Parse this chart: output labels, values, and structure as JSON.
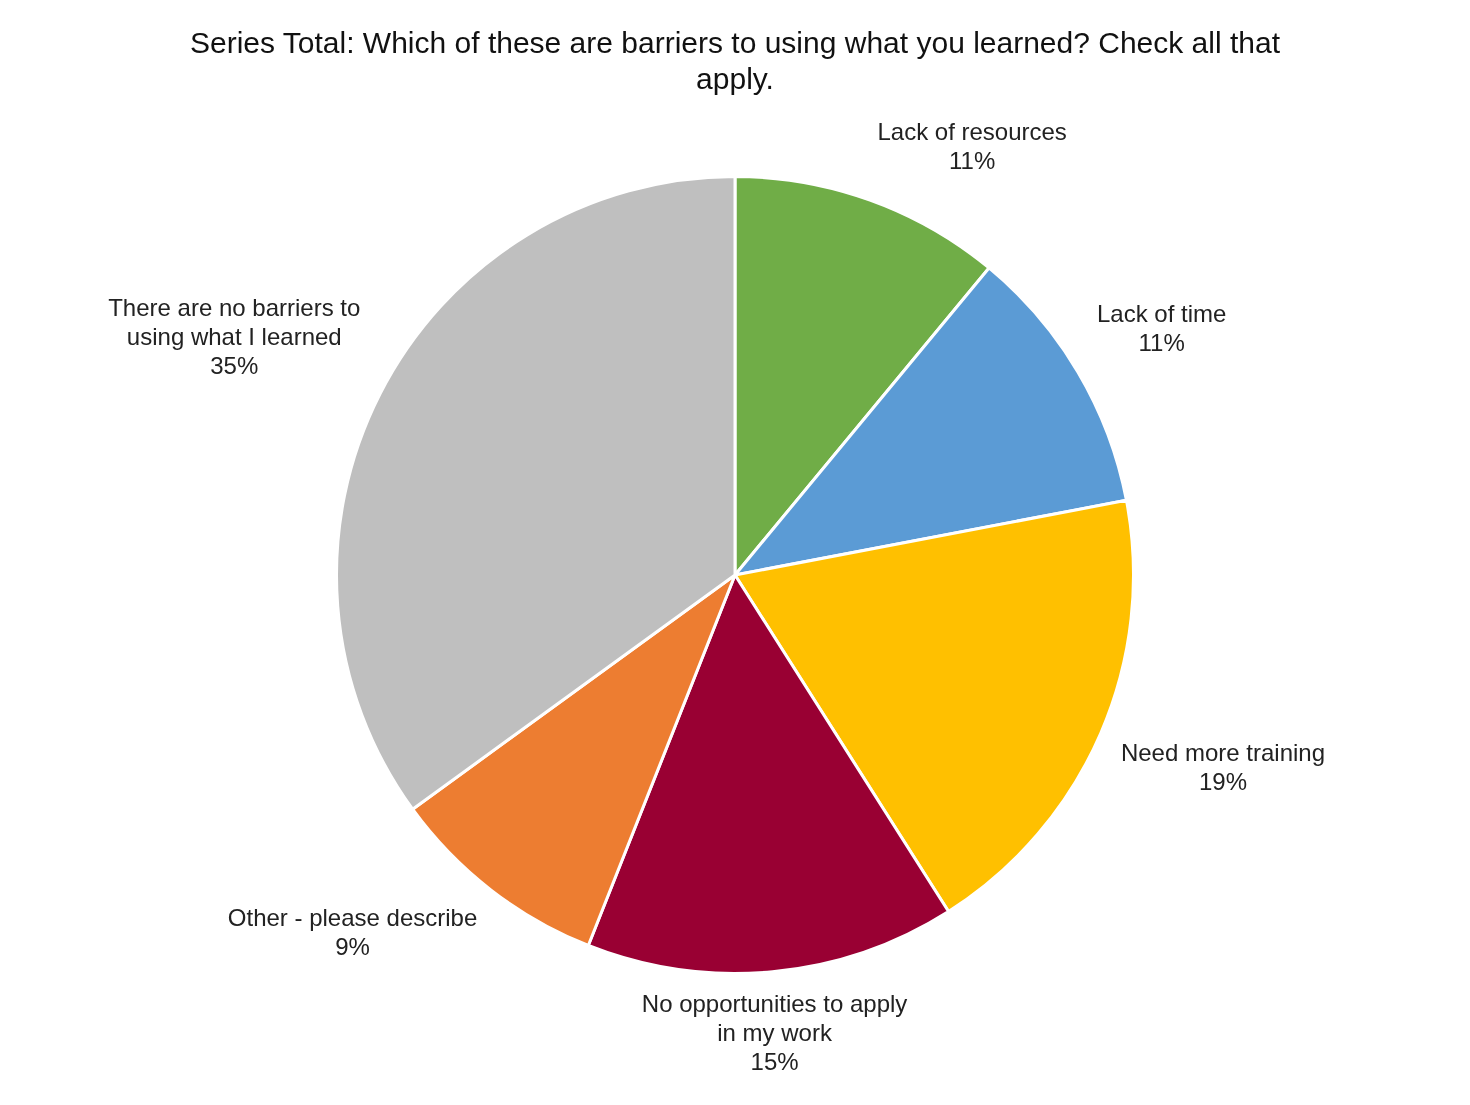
{
  "chart_data": {
    "type": "pie",
    "title": "Series Total: Which of these are barriers to using what you learned? Check all that apply.",
    "categories": [
      "Lack of resources",
      "Lack of time",
      "Need more training",
      "No opportunities to apply in my work",
      "Other - please describe",
      "There are no barriers to using what I learned"
    ],
    "values": [
      11,
      11,
      19,
      15,
      9,
      35
    ],
    "colors": [
      "#70ad47",
      "#5b9bd5",
      "#ffc000",
      "#990033",
      "#ed7d31",
      "#bfbfbf"
    ],
    "value_labels": [
      "11%",
      "11%",
      "19%",
      "15%",
      "9%",
      "35%"
    ],
    "legend": false
  }
}
